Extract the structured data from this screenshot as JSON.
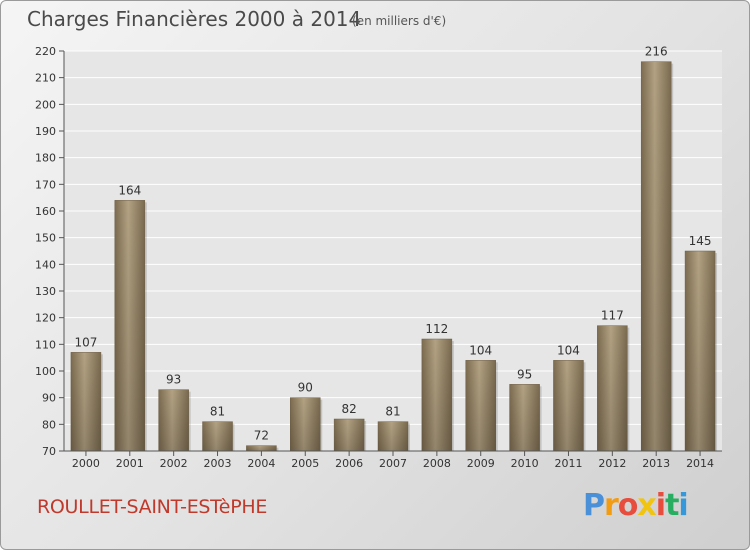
{
  "header": {
    "title": "Charges Financières 2000 à 2014",
    "subtitle": "(en milliers d'€)"
  },
  "footer": {
    "place": "ROULLET-SAINT-ESTèPHE",
    "logo": {
      "letters": [
        "P",
        "r",
        "o",
        "x",
        "i",
        "t",
        "i"
      ],
      "colors": [
        "#4a90d9",
        "#f39c12",
        "#e74c3c",
        "#f1c40f",
        "#e74c3c",
        "#27ae60",
        "#3498db"
      ]
    }
  },
  "chart_data": {
    "type": "bar",
    "categories": [
      "2000",
      "2001",
      "2002",
      "2003",
      "2004",
      "2005",
      "2006",
      "2007",
      "2008",
      "2009",
      "2010",
      "2011",
      "2012",
      "2013",
      "2014"
    ],
    "values": [
      107,
      164,
      93,
      81,
      72,
      90,
      82,
      81,
      112,
      104,
      95,
      104,
      117,
      216,
      145
    ],
    "ylim": [
      70,
      220
    ],
    "yticks": [
      70,
      80,
      90,
      100,
      110,
      120,
      130,
      140,
      150,
      160,
      170,
      180,
      190,
      200,
      210,
      220
    ],
    "grid": true,
    "bar_color": "#a39173"
  }
}
